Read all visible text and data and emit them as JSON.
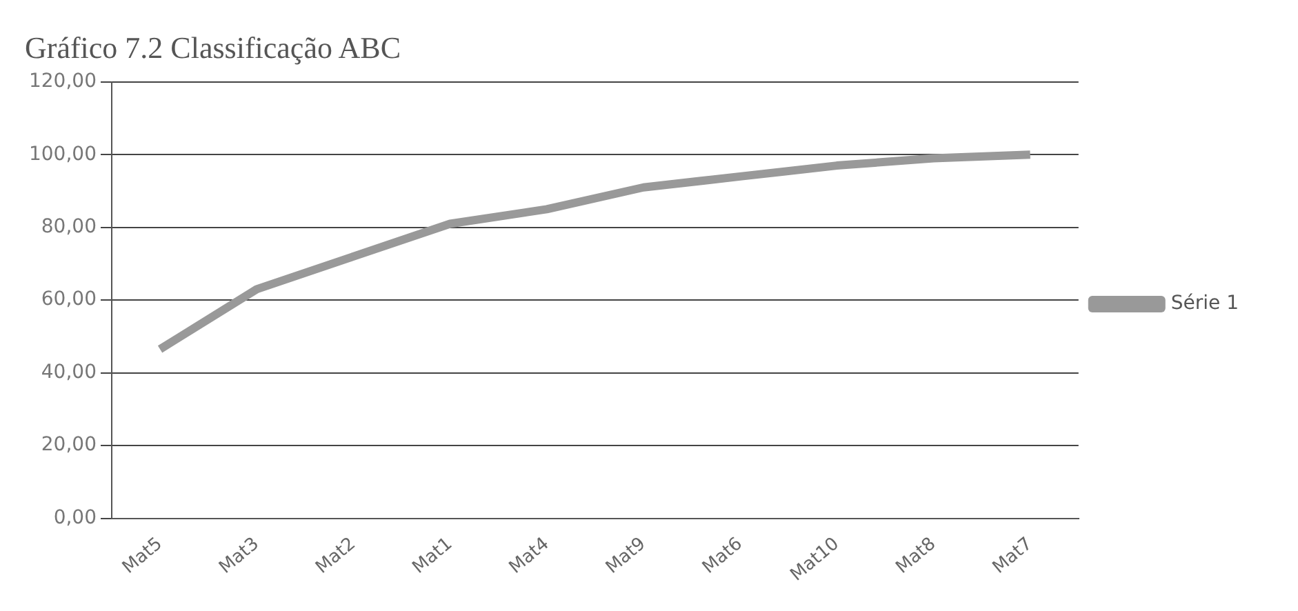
{
  "chart_data": {
    "type": "line",
    "title": "Gráfico 7.2 Classificação ABC",
    "categories": [
      "Mat5",
      "Mat3",
      "Mat2",
      "Mat1",
      "Mat4",
      "Mat9",
      "Mat6",
      "Mat10",
      "Mat8",
      "Mat7"
    ],
    "series": [
      {
        "name": "Série 1",
        "color": "#999999",
        "values": [
          46.5,
          63,
          72,
          81,
          85,
          91,
          94,
          97,
          99,
          100
        ]
      }
    ],
    "ylim": [
      0,
      120
    ],
    "yticks": [
      {
        "value": 0,
        "label": "0,00"
      },
      {
        "value": 20,
        "label": "20,00"
      },
      {
        "value": 40,
        "label": "40,00"
      },
      {
        "value": 60,
        "label": "60,00"
      },
      {
        "value": 80,
        "label": "80,00"
      },
      {
        "value": 100,
        "label": "100,00"
      },
      {
        "value": 120,
        "label": "120,00"
      }
    ],
    "grid": "y",
    "legend": "right",
    "marker": "none"
  }
}
